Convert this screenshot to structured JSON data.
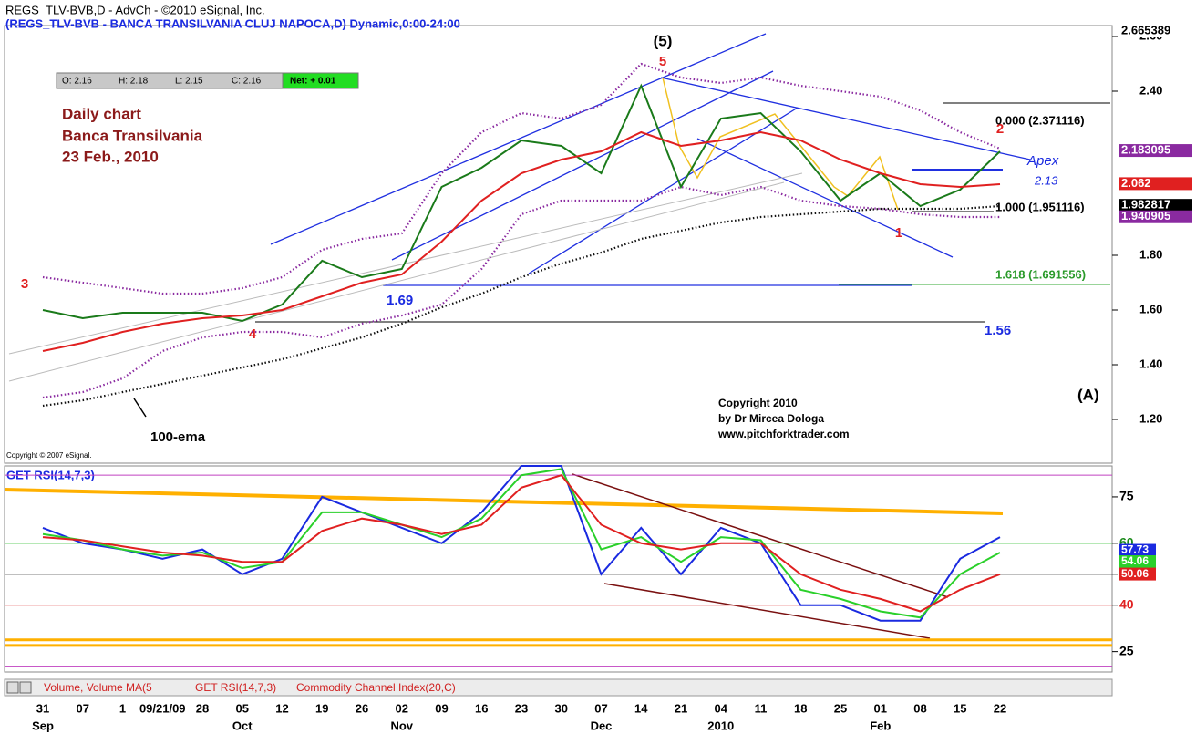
{
  "header": {
    "title": "REGS_TLV-BVB,D - AdvCh - ©2010 eSignal, Inc.",
    "subtitle": "(REGS_TLV-BVB - BANCA TRANSILVANIA CLUJ NAPOCA,D) Dynamic,0:00-24:00"
  },
  "quote": {
    "open": "O: 2.16",
    "high": "H: 2.18",
    "low": "L: 2.15",
    "close": "C: 2.16",
    "net": "Net: + 0.01"
  },
  "annotations": {
    "note1": "Daily chart",
    "note2": "Banca Transilvania",
    "note3": "23 Feb., 2010",
    "wave5": "(5)",
    "w5": "5",
    "w3": "3",
    "w4": "4",
    "w2": "2",
    "w1": "1",
    "lvl169": "1.69",
    "lvl156": "1.56",
    "fib0": "0.000 (2.371116)",
    "fib1": "1.000 (1.951116)",
    "fib1618": "1.618 (1.691556)",
    "apex": "Apex",
    "apex_value": "2.13",
    "wave_a": "(A)",
    "copy1": "Copyright 2010",
    "copy2": "by Dr Mircea Dologa",
    "copy3": "www.pitchforktrader.com",
    "ema": "100-ema",
    "esignal": "Copyright © 2007 eSignal.",
    "rsi_title": "GET RSI(14,7,3)"
  },
  "tabs": [
    "Volume, Volume MA(5",
    "GET RSI(14,7,3)",
    "Commodity Channel Index(20,C)"
  ],
  "chart_data": [
    {
      "type": "line",
      "categories": [
        "31",
        "07",
        "1",
        "09/21/09",
        "28",
        "05",
        "12",
        "19",
        "26",
        "02",
        "09",
        "16",
        "23",
        "30",
        "07",
        "14",
        "21",
        "04",
        "11",
        "18",
        "25",
        "01",
        "08",
        "15",
        "22"
      ],
      "month_labels": [
        "Sep",
        null,
        null,
        null,
        null,
        "Oct",
        null,
        null,
        null,
        "Nov",
        null,
        null,
        null,
        null,
        "Dec",
        null,
        null,
        "2010",
        null,
        null,
        null,
        "Feb",
        null,
        null,
        null
      ],
      "series": [
        {
          "color": "#1a7a1a",
          "values": [
            1.6,
            1.57,
            1.59,
            1.59,
            1.59,
            1.56,
            1.62,
            1.78,
            1.72,
            1.75,
            2.05,
            2.12,
            2.22,
            2.2,
            2.1,
            2.42,
            2.05,
            2.3,
            2.32,
            2.18,
            2.0,
            2.1,
            1.98,
            2.04,
            2.18
          ]
        },
        {
          "color": "#e02020",
          "values": [
            1.45,
            1.48,
            1.52,
            1.55,
            1.57,
            1.58,
            1.6,
            1.65,
            1.7,
            1.73,
            1.85,
            2.0,
            2.1,
            2.15,
            2.18,
            2.25,
            2.2,
            2.22,
            2.25,
            2.22,
            2.15,
            2.1,
            2.06,
            2.05,
            2.06
          ]
        },
        {
          "color": "#8a2aa0",
          "dash": true,
          "values": [
            1.72,
            1.7,
            1.68,
            1.66,
            1.66,
            1.68,
            1.72,
            1.82,
            1.86,
            1.88,
            2.1,
            2.25,
            2.32,
            2.3,
            2.35,
            2.5,
            2.45,
            2.43,
            2.45,
            2.42,
            2.4,
            2.38,
            2.33,
            2.25,
            2.19
          ]
        },
        {
          "color": "#8a2aa0",
          "dash": true,
          "values": [
            1.28,
            1.3,
            1.35,
            1.45,
            1.5,
            1.52,
            1.52,
            1.5,
            1.55,
            1.58,
            1.62,
            1.75,
            1.95,
            2.0,
            2.0,
            2.0,
            2.05,
            2.02,
            2.05,
            2.0,
            1.98,
            1.97,
            1.95,
            1.94,
            1.94
          ]
        },
        {
          "color": "#111111",
          "dash": true,
          "values": [
            1.25,
            1.27,
            1.3,
            1.33,
            1.36,
            1.39,
            1.42,
            1.46,
            1.5,
            1.55,
            1.61,
            1.66,
            1.72,
            1.77,
            1.81,
            1.86,
            1.89,
            1.92,
            1.94,
            1.95,
            1.96,
            1.97,
            1.97,
            1.97,
            1.98
          ]
        }
      ],
      "ylim": [
        1.04,
        2.64
      ],
      "yticks": [
        {
          "value": 1.2,
          "label": "1.20"
        },
        {
          "value": 1.4,
          "label": "1.40"
        },
        {
          "value": 1.6,
          "label": "1.60"
        },
        {
          "value": 1.8,
          "label": "1.80"
        },
        {
          "value": 2.4,
          "label": "2.40"
        },
        {
          "value": 2.6,
          "label": "2.60"
        }
      ],
      "tags": [
        {
          "value": 2.665389,
          "color": "#ffffff"
        },
        {
          "value": 2.183095,
          "color": "#8a2aa0"
        },
        {
          "value": 2.062,
          "color": "#e02020"
        },
        {
          "value": 1.982817,
          "color": "#000000"
        },
        {
          "value": 1.940905,
          "color": "#8a2aa0"
        }
      ]
    },
    {
      "type": "line",
      "series": [
        {
          "color": "#1a2ae0",
          "values": [
            65,
            60,
            58,
            55,
            58,
            50,
            55,
            75,
            70,
            65,
            60,
            70,
            85,
            85,
            50,
            65,
            50,
            65,
            60,
            40,
            40,
            35,
            35,
            55,
            62
          ]
        },
        {
          "color": "#2ad02a",
          "values": [
            63,
            61,
            58,
            56,
            57,
            52,
            54,
            70,
            70,
            66,
            62,
            68,
            82,
            84,
            58,
            62,
            54,
            62,
            61,
            45,
            42,
            38,
            36,
            50,
            57
          ]
        },
        {
          "color": "#e02020",
          "values": [
            62,
            61,
            59,
            57,
            56,
            54,
            54,
            64,
            68,
            66,
            63,
            66,
            78,
            82,
            66,
            60,
            58,
            60,
            60,
            50,
            45,
            42,
            38,
            45,
            50
          ]
        }
      ],
      "ylim": [
        19,
        85
      ],
      "yticks": [
        25,
        40,
        50,
        60,
        75
      ],
      "ytick_colors": [
        "#000000",
        "#e02020",
        "#000000",
        "#1a8a1a",
        "#000000"
      ],
      "levels": [
        {
          "value": 82,
          "color": "#c040c0"
        },
        {
          "value": 60,
          "color": "#3ac03a"
        },
        {
          "value": 50,
          "color": "#000000"
        },
        {
          "value": 40,
          "color": "#e04040"
        },
        {
          "value": 28.8,
          "color": "#ffb000"
        },
        {
          "value": 27,
          "color": "#ffb000"
        },
        {
          "value": 20.3,
          "color": "#c040c0"
        }
      ],
      "tags": [
        {
          "value": 57.73,
          "color": "#1a2ae0"
        },
        {
          "value": 54.06,
          "color": "#2ad02a"
        },
        {
          "value": 50.06,
          "color": "#e02020"
        }
      ]
    }
  ]
}
